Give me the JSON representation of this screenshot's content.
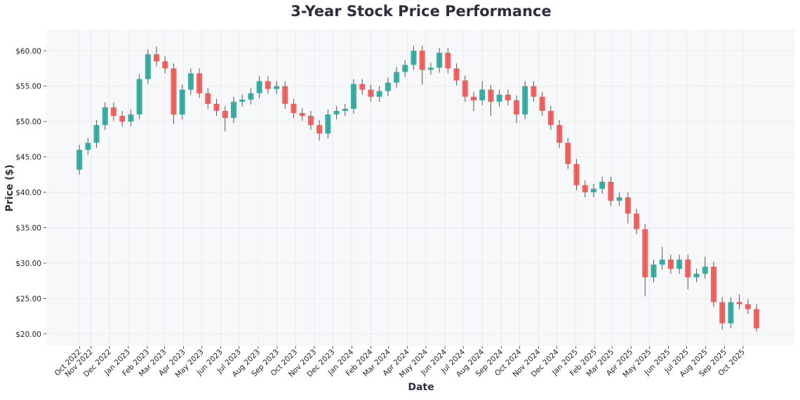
{
  "chart_data": {
    "type": "candlestick",
    "title": "3-Year Stock Price Performance",
    "xlabel": "Date",
    "ylabel": "Price ($)",
    "ylim": [
      18.3,
      63.0
    ],
    "xlim": [
      "2022-08-20",
      "2025-12-25"
    ],
    "grid": true,
    "colors": {
      "up": "#26a69a",
      "down": "#ef5350",
      "wick": "#555555",
      "plot_bg": "#f7f8fa",
      "title": "#2d2f3e"
    },
    "y_ticks": [
      20,
      25,
      30,
      35,
      40,
      45,
      50,
      55,
      60
    ],
    "y_tick_labels": [
      "$20.00",
      "$25.00",
      "$30.00",
      "$35.00",
      "$40.00",
      "$45.00",
      "$50.00",
      "$55.00",
      "$60.00"
    ],
    "x_ticks": [
      {
        "date": "2022-10-13",
        "label": "Oct 2022"
      },
      {
        "date": "2022-11-01",
        "label": "Nov 2022"
      },
      {
        "date": "2022-12-01",
        "label": "Dec 2022"
      },
      {
        "date": "2023-01-01",
        "label": "Jan 2023"
      },
      {
        "date": "2023-02-01",
        "label": "Feb 2023"
      },
      {
        "date": "2023-03-01",
        "label": "Mar 2023"
      },
      {
        "date": "2023-04-01",
        "label": "Apr 2023"
      },
      {
        "date": "2023-05-01",
        "label": "May 2023"
      },
      {
        "date": "2023-06-01",
        "label": "Jun 2023"
      },
      {
        "date": "2023-07-01",
        "label": "Jul 2023"
      },
      {
        "date": "2023-08-01",
        "label": "Aug 2023"
      },
      {
        "date": "2023-09-01",
        "label": "Sep 2023"
      },
      {
        "date": "2023-10-01",
        "label": "Oct 2023"
      },
      {
        "date": "2023-11-01",
        "label": "Nov 2023"
      },
      {
        "date": "2023-12-01",
        "label": "Dec 2023"
      },
      {
        "date": "2024-01-01",
        "label": "Jan 2024"
      },
      {
        "date": "2024-02-01",
        "label": "Feb 2024"
      },
      {
        "date": "2024-03-01",
        "label": "Mar 2024"
      },
      {
        "date": "2024-04-01",
        "label": "Apr 2024"
      },
      {
        "date": "2024-05-01",
        "label": "May 2024"
      },
      {
        "date": "2024-06-01",
        "label": "Jun 2024"
      },
      {
        "date": "2024-07-01",
        "label": "Jul 2024"
      },
      {
        "date": "2024-08-01",
        "label": "Aug 2024"
      },
      {
        "date": "2024-09-01",
        "label": "Sep 2024"
      },
      {
        "date": "2024-10-01",
        "label": "Oct 2024"
      },
      {
        "date": "2024-11-01",
        "label": "Nov 2024"
      },
      {
        "date": "2024-12-01",
        "label": "Dec 2024"
      },
      {
        "date": "2025-01-01",
        "label": "Jan 2025"
      },
      {
        "date": "2025-02-01",
        "label": "Feb 2025"
      },
      {
        "date": "2025-03-01",
        "label": "Mar 2025"
      },
      {
        "date": "2025-04-01",
        "label": "Apr 2025"
      },
      {
        "date": "2025-05-01",
        "label": "May 2025"
      },
      {
        "date": "2025-06-01",
        "label": "Jun 2025"
      },
      {
        "date": "2025-07-01",
        "label": "Jul 2025"
      },
      {
        "date": "2025-08-01",
        "label": "Aug 2025"
      },
      {
        "date": "2025-09-01",
        "label": "Sep 2025"
      },
      {
        "date": "2025-10-01",
        "label": "Oct 2025"
      }
    ],
    "dates": [
      "2022-10-13",
      "2022-10-27",
      "2022-11-10",
      "2022-11-24",
      "2022-12-08",
      "2022-12-22",
      "2023-01-05",
      "2023-01-19",
      "2023-02-02",
      "2023-02-16",
      "2023-03-02",
      "2023-03-16",
      "2023-03-30",
      "2023-04-13",
      "2023-04-27",
      "2023-05-11",
      "2023-05-25",
      "2023-06-08",
      "2023-06-22",
      "2023-07-06",
      "2023-07-20",
      "2023-08-03",
      "2023-08-17",
      "2023-08-31",
      "2023-09-14",
      "2023-09-28",
      "2023-10-12",
      "2023-10-26",
      "2023-11-09",
      "2023-11-23",
      "2023-12-07",
      "2023-12-21",
      "2024-01-04",
      "2024-01-18",
      "2024-02-01",
      "2024-02-15",
      "2024-02-29",
      "2024-03-14",
      "2024-03-28",
      "2024-04-11",
      "2024-04-25",
      "2024-05-09",
      "2024-05-23",
      "2024-06-06",
      "2024-06-20",
      "2024-07-04",
      "2024-07-18",
      "2024-08-01",
      "2024-08-15",
      "2024-08-29",
      "2024-09-12",
      "2024-09-26",
      "2024-10-10",
      "2024-10-24",
      "2024-11-07",
      "2024-11-21",
      "2024-12-05",
      "2024-12-19",
      "2025-01-02",
      "2025-01-16",
      "2025-01-30",
      "2025-02-13",
      "2025-02-27",
      "2025-03-13",
      "2025-03-27",
      "2025-04-10",
      "2025-04-24",
      "2025-05-08",
      "2025-05-22",
      "2025-06-05",
      "2025-06-19",
      "2025-07-03",
      "2025-07-17",
      "2025-07-31",
      "2025-08-14",
      "2025-08-28",
      "2025-09-11",
      "2025-09-25",
      "2025-10-09",
      "2025-10-23"
    ],
    "ohlc": [
      [
        43.2,
        46.7,
        42.5,
        46.0
      ],
      [
        46.0,
        47.7,
        45.3,
        47.0
      ],
      [
        47.0,
        50.2,
        46.3,
        49.5
      ],
      [
        49.5,
        52.7,
        48.8,
        52.0
      ],
      [
        52.0,
        52.7,
        50.1,
        50.8
      ],
      [
        50.8,
        51.5,
        49.3,
        50.0
      ],
      [
        50.0,
        51.7,
        49.3,
        51.0
      ],
      [
        51.0,
        56.7,
        50.3,
        56.0
      ],
      [
        56.0,
        60.2,
        55.3,
        59.5
      ],
      [
        59.5,
        60.6,
        57.8,
        58.5
      ],
      [
        58.5,
        59.2,
        56.8,
        57.5
      ],
      [
        57.5,
        58.2,
        49.6,
        51.0
      ],
      [
        51.0,
        55.2,
        50.3,
        54.5
      ],
      [
        54.5,
        57.5,
        53.8,
        56.8
      ],
      [
        56.8,
        57.5,
        53.3,
        54.0
      ],
      [
        54.0,
        54.7,
        51.8,
        52.5
      ],
      [
        52.5,
        53.2,
        50.8,
        51.5
      ],
      [
        51.5,
        52.2,
        48.6,
        50.5
      ],
      [
        50.5,
        53.5,
        49.8,
        52.8
      ],
      [
        52.8,
        53.8,
        52.1,
        53.1
      ],
      [
        53.1,
        54.7,
        52.4,
        54.0
      ],
      [
        54.0,
        56.4,
        53.3,
        55.7
      ],
      [
        55.7,
        56.4,
        53.9,
        54.6
      ],
      [
        54.6,
        55.7,
        53.9,
        55.0
      ],
      [
        55.0,
        55.7,
        51.8,
        52.5
      ],
      [
        52.5,
        53.2,
        50.5,
        51.2
      ],
      [
        51.2,
        51.9,
        50.1,
        50.8
      ],
      [
        50.8,
        51.5,
        48.8,
        49.5
      ],
      [
        49.5,
        50.2,
        47.3,
        48.3
      ],
      [
        48.3,
        51.7,
        47.6,
        51.0
      ],
      [
        51.0,
        52.2,
        50.3,
        51.5
      ],
      [
        51.5,
        52.5,
        50.8,
        51.8
      ],
      [
        51.8,
        56.0,
        51.1,
        55.3
      ],
      [
        55.3,
        56.0,
        53.8,
        54.5
      ],
      [
        54.5,
        55.2,
        52.8,
        53.5
      ],
      [
        53.5,
        55.0,
        52.8,
        54.3
      ],
      [
        54.3,
        56.2,
        53.6,
        55.5
      ],
      [
        55.5,
        57.7,
        54.8,
        57.0
      ],
      [
        57.0,
        58.7,
        56.3,
        58.0
      ],
      [
        58.0,
        60.7,
        57.3,
        60.0
      ],
      [
        60.0,
        60.7,
        55.2,
        57.3
      ],
      [
        57.3,
        58.3,
        56.6,
        57.6
      ],
      [
        57.6,
        60.4,
        56.9,
        59.7
      ],
      [
        59.7,
        60.4,
        56.8,
        57.5
      ],
      [
        57.5,
        58.2,
        55.1,
        55.8
      ],
      [
        55.8,
        56.5,
        52.8,
        53.5
      ],
      [
        53.5,
        54.2,
        51.5,
        53.0
      ],
      [
        53.0,
        55.7,
        52.3,
        54.5
      ],
      [
        54.5,
        55.2,
        50.8,
        52.8
      ],
      [
        52.8,
        54.5,
        52.1,
        53.8
      ],
      [
        53.8,
        54.5,
        52.3,
        53.0
      ],
      [
        53.0,
        53.7,
        49.8,
        51.0
      ],
      [
        51.0,
        55.7,
        50.3,
        55.0
      ],
      [
        55.0,
        55.7,
        52.8,
        53.5
      ],
      [
        53.5,
        54.2,
        50.8,
        51.5
      ],
      [
        51.5,
        52.2,
        48.8,
        49.5
      ],
      [
        49.5,
        50.2,
        46.3,
        47.0
      ],
      [
        47.0,
        47.7,
        43.3,
        44.0
      ],
      [
        44.0,
        44.7,
        40.3,
        41.0
      ],
      [
        41.0,
        41.7,
        39.3,
        40.0
      ],
      [
        40.0,
        41.2,
        39.3,
        40.5
      ],
      [
        40.5,
        42.2,
        39.8,
        41.5
      ],
      [
        41.5,
        42.2,
        38.1,
        38.8
      ],
      [
        38.8,
        40.0,
        38.1,
        39.3
      ],
      [
        39.3,
        40.0,
        35.6,
        37.0
      ],
      [
        37.0,
        37.7,
        34.1,
        34.8
      ],
      [
        34.8,
        35.5,
        25.3,
        28.0
      ],
      [
        28.0,
        30.5,
        27.3,
        29.8
      ],
      [
        29.8,
        32.3,
        29.1,
        30.5
      ],
      [
        30.5,
        31.2,
        28.5,
        29.2
      ],
      [
        29.2,
        31.2,
        28.5,
        30.5
      ],
      [
        30.5,
        31.2,
        26.3,
        28.0
      ],
      [
        28.0,
        29.2,
        27.3,
        28.5
      ],
      [
        28.5,
        30.9,
        27.8,
        29.5
      ],
      [
        29.5,
        30.2,
        23.8,
        24.5
      ],
      [
        24.5,
        25.2,
        20.6,
        21.5
      ],
      [
        21.5,
        25.2,
        20.8,
        24.5
      ],
      [
        24.5,
        25.6,
        23.5,
        24.2
      ],
      [
        24.2,
        24.9,
        22.8,
        23.5
      ],
      [
        23.5,
        24.2,
        20.3,
        20.8
      ]
    ]
  }
}
